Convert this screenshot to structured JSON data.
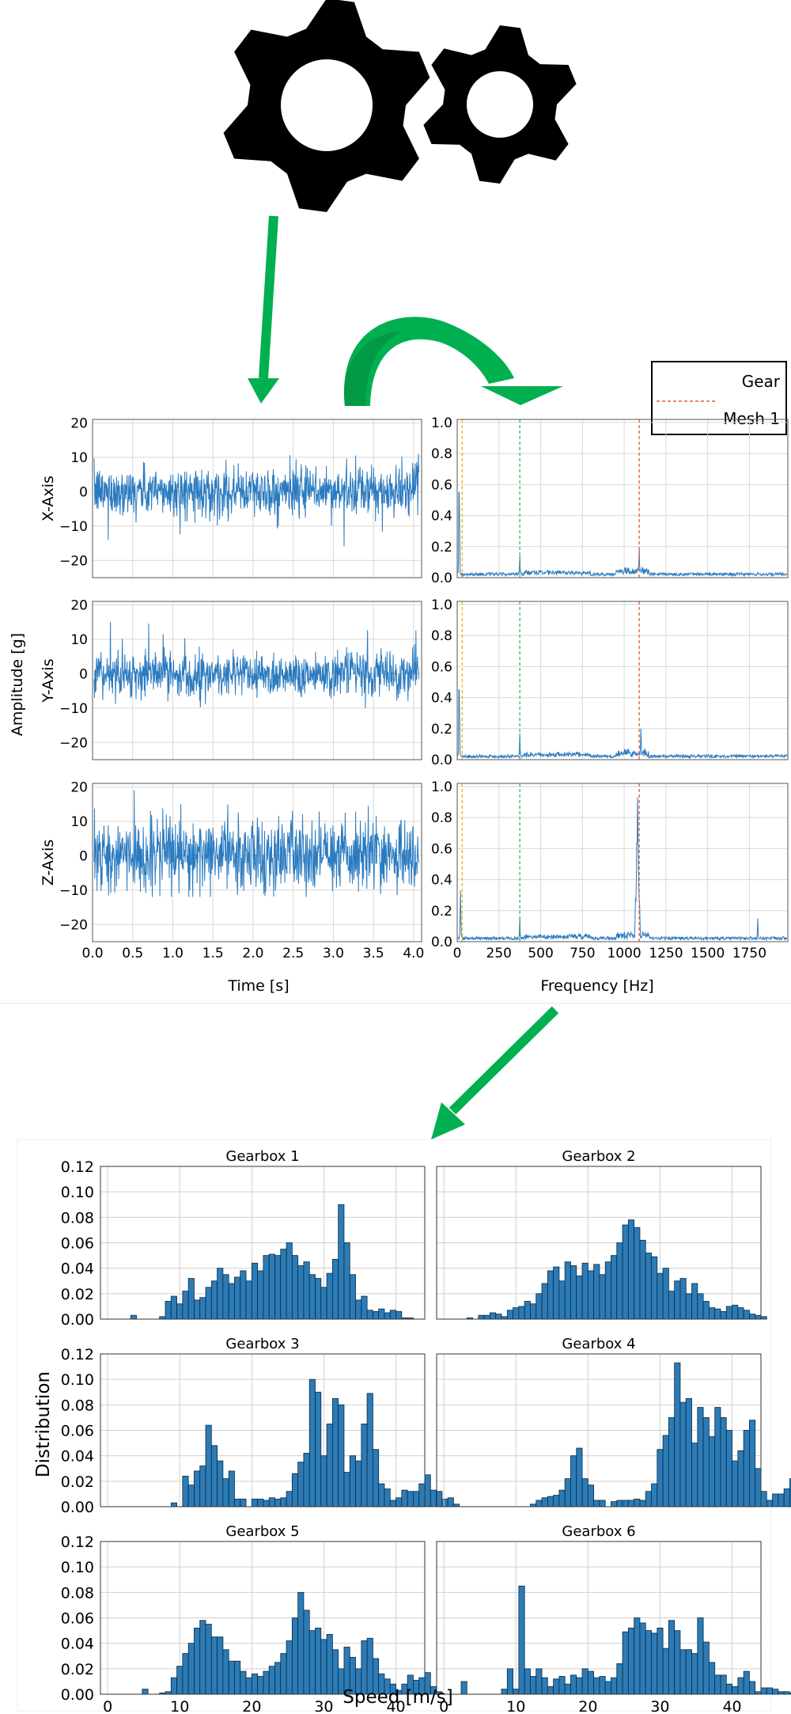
{
  "decor": {
    "gear_icon": "gear-icon",
    "arrow_icon": "arrow-icon",
    "accent": "#00b050",
    "signal_color": "#2b7bc0",
    "bar_color": "#2c7bb6"
  },
  "legend": {
    "entries": [
      {
        "label": "Gear",
        "color": "#2b7bc0",
        "style": "solid"
      },
      {
        "label": "Mesh 1",
        "color": "#e25a3a",
        "style": "dashed"
      }
    ]
  },
  "chart_data": [
    {
      "type": "line",
      "title": "",
      "xlabel": "Time [s]",
      "ylabel": "Amplitude [g]",
      "xlim": [
        0.0,
        4.1
      ],
      "ylim": [
        -25,
        21
      ],
      "xticks": [
        "0.0",
        "0.5",
        "1.0",
        "1.5",
        "2.0",
        "2.5",
        "3.0",
        "3.5",
        "4.0"
      ],
      "yticks": [
        "20",
        "10",
        "0",
        "−10",
        "−20"
      ],
      "grid": true,
      "series": [
        {
          "name": "X-Axis",
          "min": -23,
          "max": 11,
          "note_peaks": [
            -23,
            11
          ]
        },
        {
          "name": "Y-Axis",
          "min": -10,
          "max": 20
        },
        {
          "name": "Z-Axis",
          "min": -12,
          "max": 19
        }
      ]
    },
    {
      "type": "line",
      "title": "",
      "xlabel": "Frequency [Hz]",
      "xlim": [
        0,
        1980
      ],
      "ylim": [
        0,
        1.02
      ],
      "xticks": [
        "0",
        "250",
        "500",
        "750",
        "1000",
        "1250",
        "1500",
        "1750"
      ],
      "yticks": [
        "1.0",
        "0.8",
        "0.6",
        "0.4",
        "0.2",
        "0.0"
      ],
      "grid": true,
      "reference_lines": [
        {
          "x": 30,
          "color": "#f0b400"
        },
        {
          "x": 375,
          "color": "#4caf50"
        },
        {
          "x": 1090,
          "color": "#e25a3a"
        }
      ],
      "series": [
        {
          "name": "X-Axis",
          "peaks": [
            [
              12,
              0.55
            ],
            [
              375,
              0.14
            ],
            [
              1090,
              0.19
            ]
          ]
        },
        {
          "name": "Y-Axis",
          "peaks": [
            [
              12,
              0.45
            ],
            [
              375,
              0.17
            ],
            [
              1100,
              0.2
            ]
          ]
        },
        {
          "name": "Z-Axis",
          "peaks": [
            [
              20,
              0.33
            ],
            [
              375,
              0.16
            ],
            [
              1080,
              0.93
            ],
            [
              1800,
              0.15
            ]
          ]
        }
      ]
    },
    {
      "type": "bar",
      "title": "",
      "xlabel": "Speed [m/s]",
      "ylabel": "Distribution",
      "xlim": [
        -1,
        44
      ],
      "ylim": [
        0,
        0.12
      ],
      "xticks": [
        "0",
        "10",
        "20",
        "30",
        "40"
      ],
      "yticks": [
        "0.12",
        "0.10",
        "0.08",
        "0.06",
        "0.04",
        "0.02",
        "0.00"
      ],
      "grid": true,
      "bin_start": 0,
      "bin_width": 0.8,
      "panels": [
        {
          "title": "Gearbox 1",
          "values": [
            0,
            0,
            0,
            0,
            0.003,
            0,
            0,
            0,
            0,
            0.002,
            0.014,
            0.018,
            0.012,
            0.022,
            0.032,
            0.015,
            0.017,
            0.025,
            0.03,
            0.04,
            0.035,
            0.028,
            0.033,
            0.038,
            0.03,
            0.044,
            0.038,
            0.05,
            0.051,
            0.05,
            0.055,
            0.06,
            0.05,
            0.042,
            0.045,
            0.035,
            0.032,
            0.025,
            0.036,
            0.047,
            0.09,
            0.06,
            0.035,
            0.015,
            0.018,
            0.007,
            0.006,
            0.008,
            0.005,
            0.007,
            0.006,
            0.001,
            0.001,
            0,
            0
          ]
        },
        {
          "title": "Gearbox 2",
          "values": [
            0,
            0,
            0,
            0,
            0.001,
            0,
            0.003,
            0.003,
            0.005,
            0.004,
            0.002,
            0.007,
            0.009,
            0.01,
            0.014,
            0.012,
            0.02,
            0.028,
            0.038,
            0.041,
            0.03,
            0.045,
            0.042,
            0.034,
            0.044,
            0.038,
            0.043,
            0.035,
            0.045,
            0.05,
            0.06,
            0.074,
            0.078,
            0.072,
            0.062,
            0.052,
            0.049,
            0.036,
            0.04,
            0.022,
            0.03,
            0.032,
            0.02,
            0.028,
            0.02,
            0.014,
            0.009,
            0.008,
            0.006,
            0.01,
            0.011,
            0.009,
            0.007,
            0.004,
            0.003,
            0.002,
            0
          ]
        },
        {
          "title": "Gearbox 3",
          "values": [
            0,
            0,
            0,
            0,
            0,
            0,
            0,
            0,
            0,
            0,
            0,
            0.003,
            0,
            0.024,
            0.017,
            0.028,
            0.032,
            0.064,
            0.048,
            0.036,
            0.022,
            0.028,
            0.006,
            0.006,
            0,
            0.006,
            0.006,
            0.005,
            0.007,
            0.006,
            0.007,
            0.012,
            0.026,
            0.035,
            0.042,
            0.1,
            0.09,
            0.04,
            0.065,
            0.085,
            0.08,
            0.027,
            0.04,
            0.036,
            0.065,
            0.089,
            0.045,
            0.018,
            0.014,
            0.005,
            0.007,
            0.013,
            0.012,
            0.012,
            0.018,
            0.025,
            0.013,
            0.012,
            0.006,
            0.007,
            0.002
          ]
        },
        {
          "title": "Gearbox 4",
          "values": [
            0,
            0,
            0,
            0,
            0,
            0,
            0,
            0,
            0,
            0,
            0,
            0,
            0,
            0,
            0,
            0.002,
            0.005,
            0.007,
            0.008,
            0.009,
            0.013,
            0.022,
            0.04,
            0.046,
            0.022,
            0.017,
            0.005,
            0.005,
            0,
            0.004,
            0.005,
            0.005,
            0.005,
            0.006,
            0.005,
            0.012,
            0.018,
            0.045,
            0.056,
            0.07,
            0.113,
            0.082,
            0.085,
            0.05,
            0.078,
            0.07,
            0.055,
            0.078,
            0.07,
            0.06,
            0.036,
            0.044,
            0.06,
            0.068,
            0.03,
            0.012,
            0.005,
            0.01,
            0.01,
            0.014,
            0.022,
            0.025,
            0.02,
            0.02,
            0.017,
            0.015
          ]
        },
        {
          "title": "Gearbox 5",
          "values": [
            0,
            0,
            0,
            0,
            0,
            0,
            0.004,
            0,
            0,
            0.001,
            0.002,
            0.013,
            0.022,
            0.032,
            0.04,
            0.052,
            0.058,
            0.055,
            0.045,
            0.045,
            0.035,
            0.026,
            0.026,
            0.018,
            0.013,
            0.016,
            0.014,
            0.018,
            0.022,
            0.025,
            0.032,
            0.042,
            0.06,
            0.08,
            0.066,
            0.05,
            0.052,
            0.043,
            0.047,
            0.035,
            0.02,
            0.037,
            0.029,
            0.02,
            0.042,
            0.044,
            0.028,
            0.016,
            0.012,
            0.008,
            0.003,
            0.008,
            0.015,
            0.011,
            0.013,
            0.017,
            0.006,
            0.002,
            0
          ]
        },
        {
          "title": "Gearbox 6",
          "values": [
            0,
            0,
            0,
            0.01,
            0,
            0,
            0,
            0,
            0,
            0,
            0.004,
            0.02,
            0.004,
            0.085,
            0.02,
            0.014,
            0.02,
            0.013,
            0.006,
            0.012,
            0.014,
            0.008,
            0.015,
            0.013,
            0.02,
            0.018,
            0.013,
            0.014,
            0.01,
            0.013,
            0.024,
            0.049,
            0.052,
            0.06,
            0.056,
            0.05,
            0.048,
            0.052,
            0.036,
            0.058,
            0.05,
            0.035,
            0.035,
            0.032,
            0.06,
            0.041,
            0.025,
            0.015,
            0.015,
            0.008,
            0.006,
            0.013,
            0.018,
            0.01,
            0.002,
            0.005,
            0.005,
            0.004,
            0.002,
            0.002,
            0.001
          ]
        }
      ]
    }
  ]
}
